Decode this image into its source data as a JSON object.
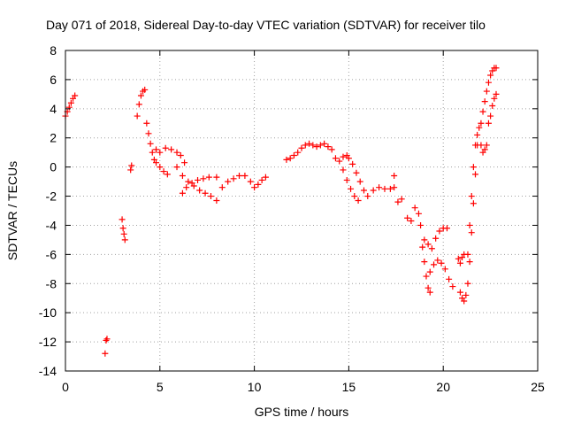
{
  "chart_data": {
    "type": "scatter",
    "title": "Day 071 of 2018, Sidereal Day-to-day VTEC variation (SDTVAR) for receiver tilo",
    "xlabel": "GPS time / hours",
    "ylabel": "SDTVAR / TECUs",
    "xlim": [
      0,
      25
    ],
    "ylim": [
      -14,
      8
    ],
    "xticks": [
      0,
      5,
      10,
      15,
      20,
      25
    ],
    "yticks": [
      -14,
      -12,
      -10,
      -8,
      -6,
      -4,
      -2,
      0,
      2,
      4,
      6,
      8
    ],
    "grid": true,
    "marker": "+",
    "color": "#ff0000",
    "series": [
      {
        "name": "SDTVAR",
        "points": [
          [
            0.0,
            3.5
          ],
          [
            0.1,
            3.8
          ],
          [
            0.2,
            4.1
          ],
          [
            0.3,
            4.4
          ],
          [
            0.4,
            4.7
          ],
          [
            0.5,
            4.9
          ],
          [
            2.1,
            -12.8
          ],
          [
            2.15,
            -11.9
          ],
          [
            2.2,
            -11.8
          ],
          [
            3.0,
            -3.6
          ],
          [
            3.05,
            -4.2
          ],
          [
            3.1,
            -4.6
          ],
          [
            3.15,
            -5.0
          ],
          [
            3.45,
            -0.2
          ],
          [
            3.5,
            0.1
          ],
          [
            3.8,
            3.5
          ],
          [
            3.9,
            4.3
          ],
          [
            4.0,
            4.9
          ],
          [
            4.1,
            5.2
          ],
          [
            4.2,
            5.3
          ],
          [
            4.3,
            3.0
          ],
          [
            4.4,
            2.3
          ],
          [
            4.5,
            1.6
          ],
          [
            4.6,
            1.0
          ],
          [
            4.7,
            0.5
          ],
          [
            4.8,
            0.3
          ],
          [
            5.0,
            0.0
          ],
          [
            5.2,
            -0.3
          ],
          [
            5.4,
            -0.5
          ],
          [
            4.8,
            1.2
          ],
          [
            5.0,
            1.0
          ],
          [
            5.3,
            1.3
          ],
          [
            5.6,
            1.2
          ],
          [
            5.9,
            1.0
          ],
          [
            6.1,
            0.8
          ],
          [
            6.3,
            0.3
          ],
          [
            5.9,
            0.0
          ],
          [
            6.2,
            -0.6
          ],
          [
            6.5,
            -1.0
          ],
          [
            6.8,
            -1.3
          ],
          [
            7.1,
            -1.6
          ],
          [
            7.4,
            -1.8
          ],
          [
            7.7,
            -2.0
          ],
          [
            8.0,
            -2.3
          ],
          [
            6.2,
            -1.8
          ],
          [
            6.4,
            -1.4
          ],
          [
            6.7,
            -1.1
          ],
          [
            7.0,
            -0.9
          ],
          [
            7.3,
            -0.8
          ],
          [
            7.6,
            -0.7
          ],
          [
            8.0,
            -0.7
          ],
          [
            8.3,
            -1.4
          ],
          [
            8.6,
            -1.0
          ],
          [
            8.9,
            -0.8
          ],
          [
            9.2,
            -0.6
          ],
          [
            9.5,
            -0.6
          ],
          [
            9.8,
            -1.0
          ],
          [
            10.0,
            -1.4
          ],
          [
            10.2,
            -1.2
          ],
          [
            10.4,
            -0.9
          ],
          [
            10.6,
            -0.7
          ],
          [
            11.7,
            0.5
          ],
          [
            11.9,
            0.6
          ],
          [
            12.1,
            0.8
          ],
          [
            12.3,
            1.0
          ],
          [
            12.5,
            1.3
          ],
          [
            12.7,
            1.5
          ],
          [
            12.9,
            1.6
          ],
          [
            13.1,
            1.5
          ],
          [
            13.3,
            1.4
          ],
          [
            13.5,
            1.5
          ],
          [
            13.7,
            1.6
          ],
          [
            13.9,
            1.4
          ],
          [
            14.1,
            1.2
          ],
          [
            14.3,
            0.6
          ],
          [
            14.5,
            0.4
          ],
          [
            14.7,
            0.7
          ],
          [
            14.9,
            0.8
          ],
          [
            14.7,
            -0.2
          ],
          [
            14.9,
            -0.9
          ],
          [
            15.1,
            -1.5
          ],
          [
            15.3,
            -2.0
          ],
          [
            15.5,
            -2.3
          ],
          [
            15.0,
            0.6
          ],
          [
            15.2,
            0.2
          ],
          [
            15.4,
            -0.4
          ],
          [
            15.6,
            -1.0
          ],
          [
            15.8,
            -1.6
          ],
          [
            16.0,
            -2.0
          ],
          [
            16.3,
            -1.6
          ],
          [
            16.6,
            -1.4
          ],
          [
            16.9,
            -1.5
          ],
          [
            17.2,
            -1.5
          ],
          [
            17.4,
            -1.4
          ],
          [
            17.4,
            -0.6
          ],
          [
            17.6,
            -2.4
          ],
          [
            17.8,
            -2.2
          ],
          [
            18.1,
            -3.5
          ],
          [
            18.3,
            -3.7
          ],
          [
            18.5,
            -2.8
          ],
          [
            18.7,
            -3.2
          ],
          [
            18.8,
            -4.0
          ],
          [
            18.9,
            -5.5
          ],
          [
            19.0,
            -6.5
          ],
          [
            19.1,
            -7.5
          ],
          [
            19.2,
            -8.3
          ],
          [
            19.3,
            -8.6
          ],
          [
            19.0,
            -5.0
          ],
          [
            19.2,
            -5.3
          ],
          [
            19.4,
            -5.6
          ],
          [
            19.6,
            -4.9
          ],
          [
            19.8,
            -4.4
          ],
          [
            20.0,
            -4.2
          ],
          [
            20.2,
            -4.2
          ],
          [
            19.3,
            -7.2
          ],
          [
            19.5,
            -6.7
          ],
          [
            19.7,
            -6.4
          ],
          [
            19.9,
            -6.6
          ],
          [
            20.1,
            -7.0
          ],
          [
            20.3,
            -7.7
          ],
          [
            20.5,
            -8.2
          ],
          [
            20.8,
            -6.3
          ],
          [
            20.9,
            -6.6
          ],
          [
            21.0,
            -6.2
          ],
          [
            21.1,
            -6.0
          ],
          [
            20.9,
            -8.6
          ],
          [
            21.0,
            -9.0
          ],
          [
            21.1,
            -9.2
          ],
          [
            21.2,
            -8.8
          ],
          [
            21.3,
            -8.0
          ],
          [
            21.4,
            -6.5
          ],
          [
            21.5,
            -4.5
          ],
          [
            21.6,
            -2.5
          ],
          [
            21.7,
            -0.5
          ],
          [
            21.8,
            1.5
          ],
          [
            21.9,
            2.7
          ],
          [
            21.3,
            -6.0
          ],
          [
            21.4,
            -4.0
          ],
          [
            21.5,
            -2.0
          ],
          [
            21.6,
            0.0
          ],
          [
            21.7,
            1.5
          ],
          [
            21.8,
            2.2
          ],
          [
            22.0,
            1.5
          ],
          [
            22.1,
            1.0
          ],
          [
            22.2,
            1.2
          ],
          [
            22.3,
            1.5
          ],
          [
            22.0,
            3.0
          ],
          [
            22.1,
            3.8
          ],
          [
            22.2,
            4.5
          ],
          [
            22.3,
            5.2
          ],
          [
            22.4,
            5.8
          ],
          [
            22.5,
            6.3
          ],
          [
            22.6,
            6.6
          ],
          [
            22.7,
            6.8
          ],
          [
            22.8,
            6.8
          ],
          [
            22.4,
            3.0
          ],
          [
            22.5,
            3.5
          ],
          [
            22.6,
            4.2
          ],
          [
            22.7,
            4.7
          ],
          [
            22.8,
            5.0
          ]
        ]
      }
    ]
  }
}
